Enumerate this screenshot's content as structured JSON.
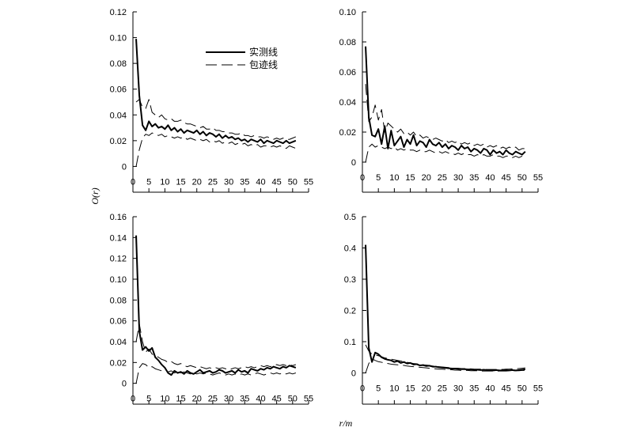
{
  "figure": {
    "ylabel": "O(r)",
    "xlabel": "r/m",
    "legend": [
      {
        "label": "实测线",
        "style": "solid"
      },
      {
        "label": "包迹线",
        "style": "dashed"
      }
    ]
  },
  "chart_data": [
    {
      "type": "line",
      "panel": "top-left",
      "xlim": [
        0,
        55
      ],
      "ylim": [
        -0.02,
        0.12
      ],
      "xticks": [
        0,
        5,
        10,
        15,
        20,
        25,
        30,
        35,
        40,
        45,
        50,
        55
      ],
      "yticks": [
        0,
        0.02,
        0.04,
        0.06,
        0.08,
        0.1,
        0.12
      ],
      "ytick_labels": [
        "0",
        "0.02",
        "0.04",
        "0.06",
        "0.08",
        "0.10",
        "0.12"
      ],
      "legend_position": "top-center",
      "x": [
        1,
        2,
        3,
        4,
        5,
        6,
        7,
        8,
        9,
        10,
        11,
        12,
        13,
        14,
        15,
        16,
        17,
        18,
        19,
        20,
        21,
        22,
        23,
        24,
        25,
        26,
        27,
        28,
        29,
        30,
        31,
        32,
        33,
        34,
        35,
        36,
        37,
        38,
        39,
        40,
        41,
        42,
        43,
        44,
        45,
        46,
        47,
        48,
        49,
        50,
        51
      ],
      "series": [
        {
          "role": "observed",
          "style": "solid",
          "values": [
            0.099,
            0.055,
            0.032,
            0.028,
            0.035,
            0.031,
            0.033,
            0.03,
            0.031,
            0.029,
            0.032,
            0.028,
            0.03,
            0.027,
            0.029,
            0.026,
            0.028,
            0.027,
            0.026,
            0.028,
            0.025,
            0.027,
            0.024,
            0.026,
            0.025,
            0.023,
            0.025,
            0.022,
            0.024,
            0.022,
            0.023,
            0.021,
            0.022,
            0.02,
            0.021,
            0.019,
            0.021,
            0.02,
            0.019,
            0.021,
            0.018,
            0.02,
            0.019,
            0.018,
            0.02,
            0.019,
            0.018,
            0.02,
            0.018,
            0.019,
            0.02
          ]
        },
        {
          "role": "upper-envelope",
          "style": "dashed",
          "values": [
            0.05,
            0.052,
            0.046,
            0.045,
            0.052,
            0.042,
            0.04,
            0.038,
            0.04,
            0.037,
            0.036,
            0.037,
            0.035,
            0.035,
            0.036,
            0.034,
            0.033,
            0.033,
            0.032,
            0.031,
            0.03,
            0.031,
            0.029,
            0.029,
            0.03,
            0.028,
            0.028,
            0.027,
            0.027,
            0.026,
            0.026,
            0.025,
            0.025,
            0.026,
            0.024,
            0.024,
            0.023,
            0.024,
            0.023,
            0.023,
            0.022,
            0.023,
            0.022,
            0.021,
            0.022,
            0.021,
            0.022,
            0.021,
            0.021,
            0.022,
            0.023
          ]
        },
        {
          "role": "lower-envelope",
          "style": "dashed",
          "values": [
            0.0,
            0.013,
            0.022,
            0.025,
            0.024,
            0.026,
            0.025,
            0.024,
            0.025,
            0.023,
            0.024,
            0.023,
            0.022,
            0.023,
            0.022,
            0.023,
            0.021,
            0.022,
            0.021,
            0.02,
            0.021,
            0.02,
            0.021,
            0.019,
            0.02,
            0.019,
            0.02,
            0.018,
            0.019,
            0.018,
            0.019,
            0.017,
            0.018,
            0.017,
            0.018,
            0.016,
            0.017,
            0.016,
            0.017,
            0.015,
            0.016,
            0.016,
            0.015,
            0.016,
            0.015,
            0.016,
            0.015,
            0.014,
            0.016,
            0.015,
            0.014
          ]
        }
      ]
    },
    {
      "type": "line",
      "panel": "top-right",
      "xlim": [
        0,
        55
      ],
      "ylim": [
        -0.02,
        0.1
      ],
      "xticks": [
        0,
        5,
        10,
        15,
        20,
        25,
        30,
        35,
        40,
        45,
        50,
        55
      ],
      "yticks": [
        0,
        0.02,
        0.04,
        0.06,
        0.08,
        0.1
      ],
      "ytick_labels": [
        "0",
        "0.02",
        "0.04",
        "0.06",
        "0.08",
        "0.10"
      ],
      "x": [
        1,
        2,
        3,
        4,
        5,
        6,
        7,
        8,
        9,
        10,
        11,
        12,
        13,
        14,
        15,
        16,
        17,
        18,
        19,
        20,
        21,
        22,
        23,
        24,
        25,
        26,
        27,
        28,
        29,
        30,
        31,
        32,
        33,
        34,
        35,
        36,
        37,
        38,
        39,
        40,
        41,
        42,
        43,
        44,
        45,
        46,
        47,
        48,
        49,
        50,
        51
      ],
      "series": [
        {
          "role": "observed",
          "style": "solid",
          "values": [
            0.077,
            0.03,
            0.018,
            0.017,
            0.022,
            0.012,
            0.024,
            0.009,
            0.021,
            0.011,
            0.014,
            0.017,
            0.01,
            0.015,
            0.012,
            0.018,
            0.011,
            0.014,
            0.013,
            0.01,
            0.015,
            0.012,
            0.011,
            0.013,
            0.01,
            0.012,
            0.009,
            0.011,
            0.01,
            0.008,
            0.011,
            0.009,
            0.01,
            0.007,
            0.009,
            0.008,
            0.006,
            0.009,
            0.008,
            0.005,
            0.008,
            0.006,
            0.007,
            0.005,
            0.008,
            0.006,
            0.005,
            0.007,
            0.006,
            0.005,
            0.007
          ]
        },
        {
          "role": "upper-envelope",
          "style": "dashed",
          "values": [
            0.052,
            0.027,
            0.03,
            0.038,
            0.028,
            0.035,
            0.02,
            0.026,
            0.024,
            0.022,
            0.02,
            0.022,
            0.019,
            0.02,
            0.018,
            0.02,
            0.017,
            0.018,
            0.016,
            0.017,
            0.016,
            0.015,
            0.016,
            0.015,
            0.014,
            0.015,
            0.013,
            0.014,
            0.013,
            0.014,
            0.012,
            0.013,
            0.012,
            0.013,
            0.011,
            0.012,
            0.011,
            0.012,
            0.01,
            0.011,
            0.01,
            0.011,
            0.009,
            0.01,
            0.009,
            0.01,
            0.009,
            0.01,
            0.008,
            0.009,
            0.009
          ]
        },
        {
          "role": "lower-envelope",
          "style": "dashed",
          "values": [
            0.0,
            0.01,
            0.012,
            0.01,
            0.011,
            0.01,
            0.009,
            0.01,
            0.009,
            0.01,
            0.008,
            0.009,
            0.008,
            0.009,
            0.008,
            0.008,
            0.007,
            0.008,
            0.007,
            0.007,
            0.008,
            0.007,
            0.006,
            0.007,
            0.006,
            0.007,
            0.006,
            0.006,
            0.005,
            0.006,
            0.005,
            0.006,
            0.005,
            0.005,
            0.004,
            0.005,
            0.004,
            0.005,
            0.004,
            0.004,
            0.005,
            0.004,
            0.004,
            0.003,
            0.004,
            0.004,
            0.003,
            0.004,
            0.003,
            0.004,
            0.004
          ]
        }
      ]
    },
    {
      "type": "line",
      "panel": "bottom-left",
      "xlim": [
        0,
        55
      ],
      "ylim": [
        -0.02,
        0.16
      ],
      "xticks": [
        0,
        5,
        10,
        15,
        20,
        25,
        30,
        35,
        40,
        45,
        50,
        55
      ],
      "yticks": [
        0,
        0.02,
        0.04,
        0.06,
        0.08,
        0.1,
        0.12,
        0.14,
        0.16
      ],
      "ytick_labels": [
        "0",
        "0.02",
        "0.04",
        "0.06",
        "0.08",
        "0.10",
        "0.12",
        "0.14",
        "0.16"
      ],
      "x": [
        1,
        2,
        3,
        4,
        5,
        6,
        7,
        8,
        9,
        10,
        11,
        12,
        13,
        14,
        15,
        16,
        17,
        18,
        19,
        20,
        21,
        22,
        23,
        24,
        25,
        26,
        27,
        28,
        29,
        30,
        31,
        32,
        33,
        34,
        35,
        36,
        37,
        38,
        39,
        40,
        41,
        42,
        43,
        44,
        45,
        46,
        47,
        48,
        49,
        50,
        51
      ],
      "series": [
        {
          "role": "observed",
          "style": "solid",
          "values": [
            0.142,
            0.05,
            0.032,
            0.035,
            0.031,
            0.034,
            0.025,
            0.022,
            0.018,
            0.015,
            0.01,
            0.008,
            0.012,
            0.01,
            0.011,
            0.009,
            0.012,
            0.01,
            0.009,
            0.011,
            0.013,
            0.01,
            0.011,
            0.012,
            0.01,
            0.011,
            0.013,
            0.012,
            0.01,
            0.011,
            0.012,
            0.01,
            0.013,
            0.011,
            0.012,
            0.01,
            0.014,
            0.013,
            0.012,
            0.014,
            0.013,
            0.015,
            0.014,
            0.016,
            0.015,
            0.014,
            0.016,
            0.015,
            0.017,
            0.016,
            0.015
          ]
        },
        {
          "role": "upper-envelope",
          "style": "dashed",
          "values": [
            0.04,
            0.057,
            0.04,
            0.03,
            0.033,
            0.028,
            0.027,
            0.025,
            0.023,
            0.022,
            0.02,
            0.021,
            0.019,
            0.018,
            0.019,
            0.017,
            0.016,
            0.017,
            0.016,
            0.015,
            0.016,
            0.015,
            0.014,
            0.015,
            0.014,
            0.015,
            0.014,
            0.015,
            0.014,
            0.013,
            0.014,
            0.015,
            0.014,
            0.015,
            0.016,
            0.015,
            0.016,
            0.015,
            0.016,
            0.017,
            0.016,
            0.017,
            0.016,
            0.017,
            0.018,
            0.017,
            0.018,
            0.017,
            0.018,
            0.017,
            0.018
          ]
        },
        {
          "role": "lower-envelope",
          "style": "dashed",
          "values": [
            0.0,
            0.015,
            0.019,
            0.018,
            0.015,
            0.016,
            0.014,
            0.013,
            0.012,
            0.013,
            0.011,
            0.012,
            0.01,
            0.011,
            0.01,
            0.011,
            0.01,
            0.009,
            0.01,
            0.009,
            0.01,
            0.009,
            0.01,
            0.009,
            0.008,
            0.009,
            0.01,
            0.009,
            0.008,
            0.009,
            0.008,
            0.009,
            0.008,
            0.009,
            0.008,
            0.009,
            0.008,
            0.009,
            0.01,
            0.009,
            0.008,
            0.009,
            0.01,
            0.009,
            0.01,
            0.009,
            0.01,
            0.009,
            0.01,
            0.009,
            0.01
          ]
        }
      ]
    },
    {
      "type": "line",
      "panel": "bottom-right",
      "xlim": [
        0,
        55
      ],
      "ylim": [
        -0.1,
        0.5
      ],
      "xticks": [
        0,
        5,
        10,
        15,
        20,
        25,
        30,
        35,
        40,
        45,
        50,
        55
      ],
      "yticks": [
        0,
        0.1,
        0.2,
        0.3,
        0.4,
        0.5
      ],
      "ytick_labels": [
        "0",
        "0.1",
        "0.2",
        "0.3",
        "0.4",
        "0.5"
      ],
      "x": [
        1,
        2,
        3,
        4,
        5,
        6,
        7,
        8,
        9,
        10,
        11,
        12,
        13,
        14,
        15,
        16,
        17,
        18,
        19,
        20,
        21,
        22,
        23,
        24,
        25,
        26,
        27,
        28,
        29,
        30,
        31,
        32,
        33,
        34,
        35,
        36,
        37,
        38,
        39,
        40,
        41,
        42,
        43,
        44,
        45,
        46,
        47,
        48,
        49,
        50,
        51
      ],
      "series": [
        {
          "role": "observed",
          "style": "solid",
          "values": [
            0.41,
            0.08,
            0.035,
            0.065,
            0.06,
            0.05,
            0.045,
            0.042,
            0.04,
            0.035,
            0.038,
            0.032,
            0.035,
            0.03,
            0.032,
            0.027,
            0.028,
            0.024,
            0.025,
            0.022,
            0.023,
            0.02,
            0.02,
            0.018,
            0.017,
            0.016,
            0.015,
            0.014,
            0.014,
            0.013,
            0.012,
            0.012,
            0.011,
            0.011,
            0.01,
            0.01,
            0.009,
            0.01,
            0.009,
            0.009,
            0.008,
            0.009,
            0.008,
            0.008,
            0.009,
            0.008,
            0.009,
            0.008,
            0.009,
            0.01,
            0.012
          ]
        },
        {
          "role": "upper-envelope",
          "style": "dashed",
          "values": [
            0.09,
            0.07,
            0.06,
            0.058,
            0.055,
            0.052,
            0.048,
            0.046,
            0.044,
            0.042,
            0.04,
            0.038,
            0.036,
            0.034,
            0.032,
            0.03,
            0.029,
            0.027,
            0.026,
            0.025,
            0.024,
            0.022,
            0.021,
            0.02,
            0.019,
            0.018,
            0.017,
            0.016,
            0.015,
            0.015,
            0.014,
            0.014,
            0.013,
            0.013,
            0.012,
            0.012,
            0.012,
            0.011,
            0.011,
            0.011,
            0.011,
            0.011,
            0.012,
            0.011,
            0.012,
            0.012,
            0.013,
            0.013,
            0.014,
            0.015,
            0.016
          ]
        },
        {
          "role": "lower-envelope",
          "style": "dashed",
          "values": [
            0.0,
            0.03,
            0.045,
            0.04,
            0.036,
            0.034,
            0.032,
            0.03,
            0.028,
            0.027,
            0.026,
            0.025,
            0.024,
            0.022,
            0.021,
            0.02,
            0.019,
            0.018,
            0.017,
            0.016,
            0.015,
            0.014,
            0.013,
            0.012,
            0.012,
            0.011,
            0.01,
            0.01,
            0.009,
            0.009,
            0.008,
            0.008,
            0.008,
            0.007,
            0.007,
            0.007,
            0.006,
            0.006,
            0.006,
            0.006,
            0.006,
            0.006,
            0.006,
            0.006,
            0.006,
            0.007,
            0.007,
            0.007,
            0.007,
            0.008,
            0.008
          ]
        }
      ]
    }
  ]
}
